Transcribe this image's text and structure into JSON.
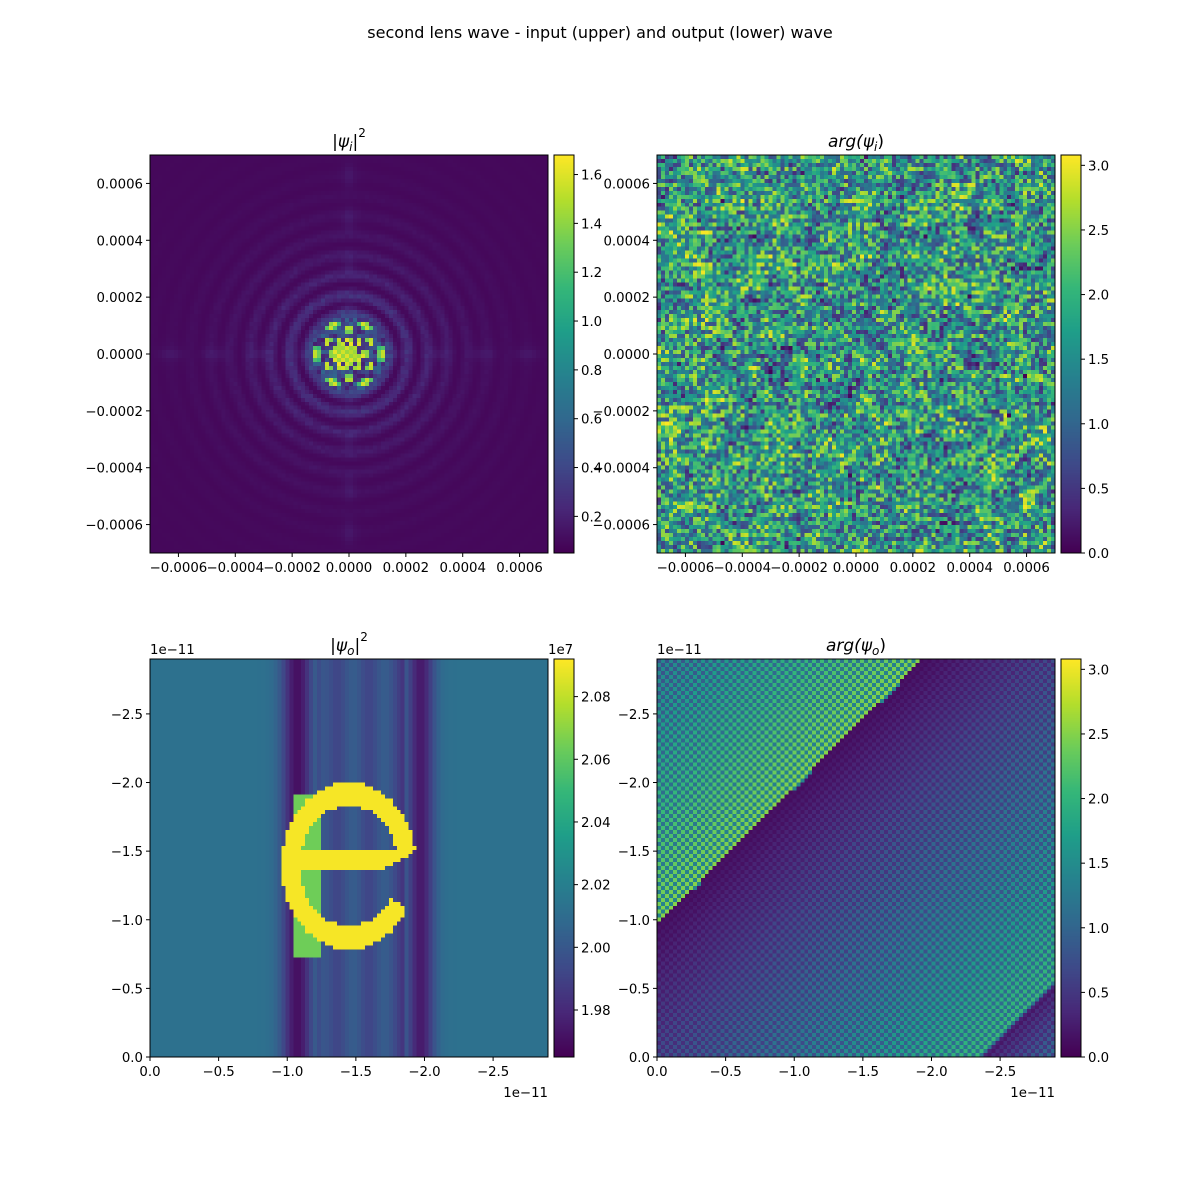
{
  "figure": {
    "suptitle": "second lens wave - input (upper) and output (lower) wave"
  },
  "chart_data": [
    {
      "type": "heatmap",
      "title": {
        "symbol": "|ψ",
        "subscript": "i",
        "suffix": "|",
        "superscript": "2"
      },
      "xlim": [
        -0.0007,
        0.0007
      ],
      "ylim": [
        -0.0007,
        0.0007
      ],
      "grid": false,
      "x_ticks": [
        -0.0006,
        -0.0004,
        -0.0002,
        0.0,
        0.0002,
        0.0004,
        0.0006
      ],
      "x_tick_labels": [
        "−0.0006",
        "−0.0004",
        "−0.0002",
        "0.0000",
        "0.0002",
        "0.0004",
        "0.0006"
      ],
      "y_ticks": [
        0.0006,
        0.0004,
        0.0002,
        0.0,
        -0.0002,
        -0.0004,
        -0.0006
      ],
      "y_tick_labels": [
        "0.0006",
        "0.0004",
        "0.0002",
        "0.0000",
        "−0.0002",
        "−0.0004",
        "−0.0006"
      ],
      "colormap": "viridis",
      "colorbar": {
        "range": [
          0.05,
          1.68
        ],
        "ticks": [
          0.2,
          0.4,
          0.6,
          0.8,
          1.0,
          1.2,
          1.4,
          1.6
        ],
        "tick_labels": [
          "0.2",
          "0.4",
          "0.6",
          "0.8",
          "1.0",
          "1.2",
          "1.4",
          "1.6"
        ],
        "offset": ""
      },
      "pattern": "central diffraction spot with concentric rings, bright core of radius about 0.00006, faint rings out to about 0.0005"
    },
    {
      "type": "heatmap",
      "title": {
        "symbol": "arg(ψ",
        "subscript": "i",
        "suffix": ")",
        "superscript": ""
      },
      "xlim": [
        -0.0007,
        0.0007
      ],
      "ylim": [
        -0.0007,
        0.0007
      ],
      "grid": false,
      "x_ticks": [
        -0.0006,
        -0.0004,
        -0.0002,
        0.0,
        0.0002,
        0.0004,
        0.0006
      ],
      "x_tick_labels": [
        "−0.0006",
        "−0.0004",
        "−0.0002",
        "0.0000",
        "0.0002",
        "0.0004",
        "0.0006"
      ],
      "y_ticks": [
        0.0006,
        0.0004,
        0.0002,
        0.0,
        -0.0002,
        -0.0004,
        -0.0006
      ],
      "y_tick_labels": [
        "0.0006",
        "0.0004",
        "0.0002",
        "0.0000",
        "−0.0002",
        "−0.0004",
        "−0.0006"
      ],
      "colormap": "viridis",
      "colorbar": {
        "range": [
          0.0,
          3.08
        ],
        "ticks": [
          0.0,
          0.5,
          1.0,
          1.5,
          2.0,
          2.5,
          3.0
        ],
        "tick_labels": [
          "0.0",
          "0.5",
          "1.0",
          "1.5",
          "2.0",
          "2.5",
          "3.0"
        ],
        "offset": ""
      },
      "pattern": "pseudo-random phase noise over a 100 by 100 pixel grid"
    },
    {
      "type": "heatmap",
      "title": {
        "symbol": "|ψ",
        "subscript": "o",
        "suffix": "|",
        "superscript": "2"
      },
      "xlim": [
        0.0,
        -2.9e-11
      ],
      "ylim": [
        0.0,
        -2.9e-11
      ],
      "grid": false,
      "x_ticks": [
        0.0,
        -5e-12,
        -1e-11,
        -1.5e-11,
        -2e-11,
        -2.5e-11
      ],
      "x_tick_labels": [
        "0.0",
        "−0.5",
        "−1.0",
        "−1.5",
        "−2.0",
        "−2.5"
      ],
      "x_offset": "1e−11",
      "y_ticks": [
        -2.5e-11,
        -2e-11,
        -1.5e-11,
        -1e-11,
        -5e-12,
        0.0
      ],
      "y_tick_labels": [
        "−2.5",
        "−2.0",
        "−1.5",
        "−1.0",
        "−0.5",
        "0.0"
      ],
      "y_offset": "1e−11",
      "colormap": "viridis",
      "colorbar": {
        "range": [
          19650000,
          20920000
        ],
        "ticks": [
          19800000,
          20000000,
          20200000,
          20400000,
          20600000,
          20800000
        ],
        "tick_labels": [
          "1.98",
          "2.00",
          "2.02",
          "2.04",
          "2.06",
          "2.08"
        ],
        "offset": "1e7"
      },
      "pattern": "uniform background about 2.01e7 with two vertical dark bands near x = -1.1e-11 and x = -1.95e-11, a mid-dark band between them, and a bright glyph shaped like the letter e centred near (-1.4e-11, -1.4e-11)"
    },
    {
      "type": "heatmap",
      "title": {
        "symbol": "arg(ψ",
        "subscript": "o",
        "suffix": ")",
        "superscript": ""
      },
      "xlim": [
        0.0,
        -2.9e-11
      ],
      "ylim": [
        0.0,
        -2.9e-11
      ],
      "grid": false,
      "x_ticks": [
        0.0,
        -5e-12,
        -1e-11,
        -1.5e-11,
        -2e-11,
        -2.5e-11
      ],
      "x_tick_labels": [
        "0.0",
        "−0.5",
        "−1.0",
        "−1.5",
        "−2.0",
        "−2.5"
      ],
      "x_offset": "1e−11",
      "y_ticks": [
        -2.5e-11,
        -2e-11,
        -1.5e-11,
        -1e-11,
        -5e-12,
        0.0
      ],
      "y_tick_labels": [
        "−2.5",
        "−2.0",
        "−1.5",
        "−1.0",
        "−0.5",
        "0.0"
      ],
      "y_offset": "1e−11",
      "colormap": "viridis",
      "colorbar": {
        "range": [
          0.0,
          3.08
        ],
        "ticks": [
          0.0,
          0.5,
          1.0,
          1.5,
          2.0,
          2.5,
          3.0
        ],
        "tick_labels": [
          "0.0",
          "0.5",
          "1.0",
          "1.5",
          "2.0",
          "2.5",
          "3.0"
        ],
        "offset": ""
      },
      "pattern": "diagonal phase ramp with checkerboard modulation wrapping across two diagonal discontinuities"
    }
  ]
}
